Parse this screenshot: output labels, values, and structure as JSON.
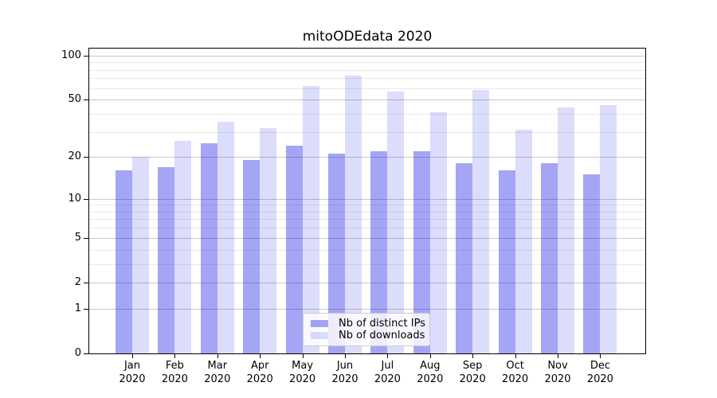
{
  "chart_data": {
    "type": "bar",
    "title": "mitoODEdata 2020",
    "categories": [
      "Jan",
      "Feb",
      "Mar",
      "Apr",
      "May",
      "Jun",
      "Jul",
      "Aug",
      "Sep",
      "Oct",
      "Nov",
      "Dec"
    ],
    "year": "2020",
    "series": [
      {
        "name": "Nb of distinct IPs",
        "color": "rgba(30,30,230,0.40)",
        "values": [
          16,
          17,
          25,
          19,
          24,
          21,
          22,
          22,
          18,
          16,
          18,
          15
        ]
      },
      {
        "name": "Nb of downloads",
        "color": "rgba(30,30,230,0.155)",
        "values": [
          20,
          26,
          35,
          32,
          62,
          73,
          57,
          41,
          58,
          31,
          44,
          46
        ]
      }
    ],
    "yscale": "log1p",
    "ylim": [
      0,
      112
    ],
    "yticks": [
      0,
      1,
      2,
      5,
      10,
      20,
      50,
      100
    ],
    "yticks_minor": [
      3,
      4,
      6,
      7,
      8,
      9,
      30,
      40,
      60,
      70,
      80,
      90
    ],
    "grid": true,
    "legend_position": "lower center"
  },
  "colors": {
    "grid_major": "#c9c9c9",
    "grid_minor": "#e9e9e9",
    "spine": "#000000",
    "text": "#000000",
    "legend_bg": "rgba(255,255,255,0.8)",
    "legend_border": "#cccccc"
  }
}
